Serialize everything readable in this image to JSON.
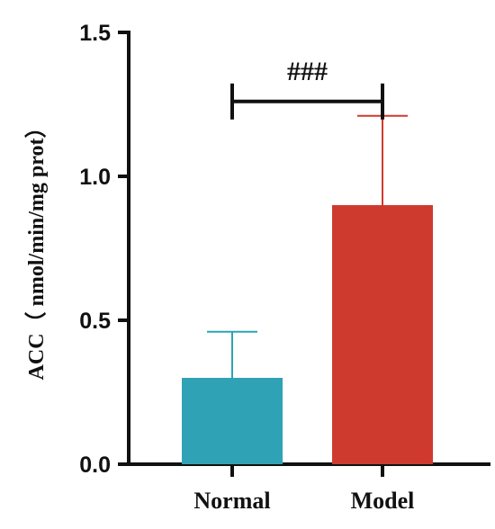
{
  "chart_data": {
    "type": "bar",
    "title": "",
    "xlabel": "",
    "ylabel": "ACC（ nmol/min/mg prot）",
    "ylim": [
      0,
      1.5
    ],
    "yticks": [
      0.0,
      0.5,
      1.0,
      1.5
    ],
    "ytick_labels": [
      "0.0",
      "0.5",
      "1.0",
      "1.5"
    ],
    "categories": [
      "Normal",
      "Model"
    ],
    "values": [
      0.3,
      0.9
    ],
    "errors": [
      0.16,
      0.31
    ],
    "colors": [
      "#2fa3b5",
      "#cf3a2e"
    ],
    "annotation": {
      "text": "###",
      "between": [
        "Normal",
        "Model"
      ],
      "y": 1.26
    },
    "grid": false,
    "legend": "none"
  }
}
